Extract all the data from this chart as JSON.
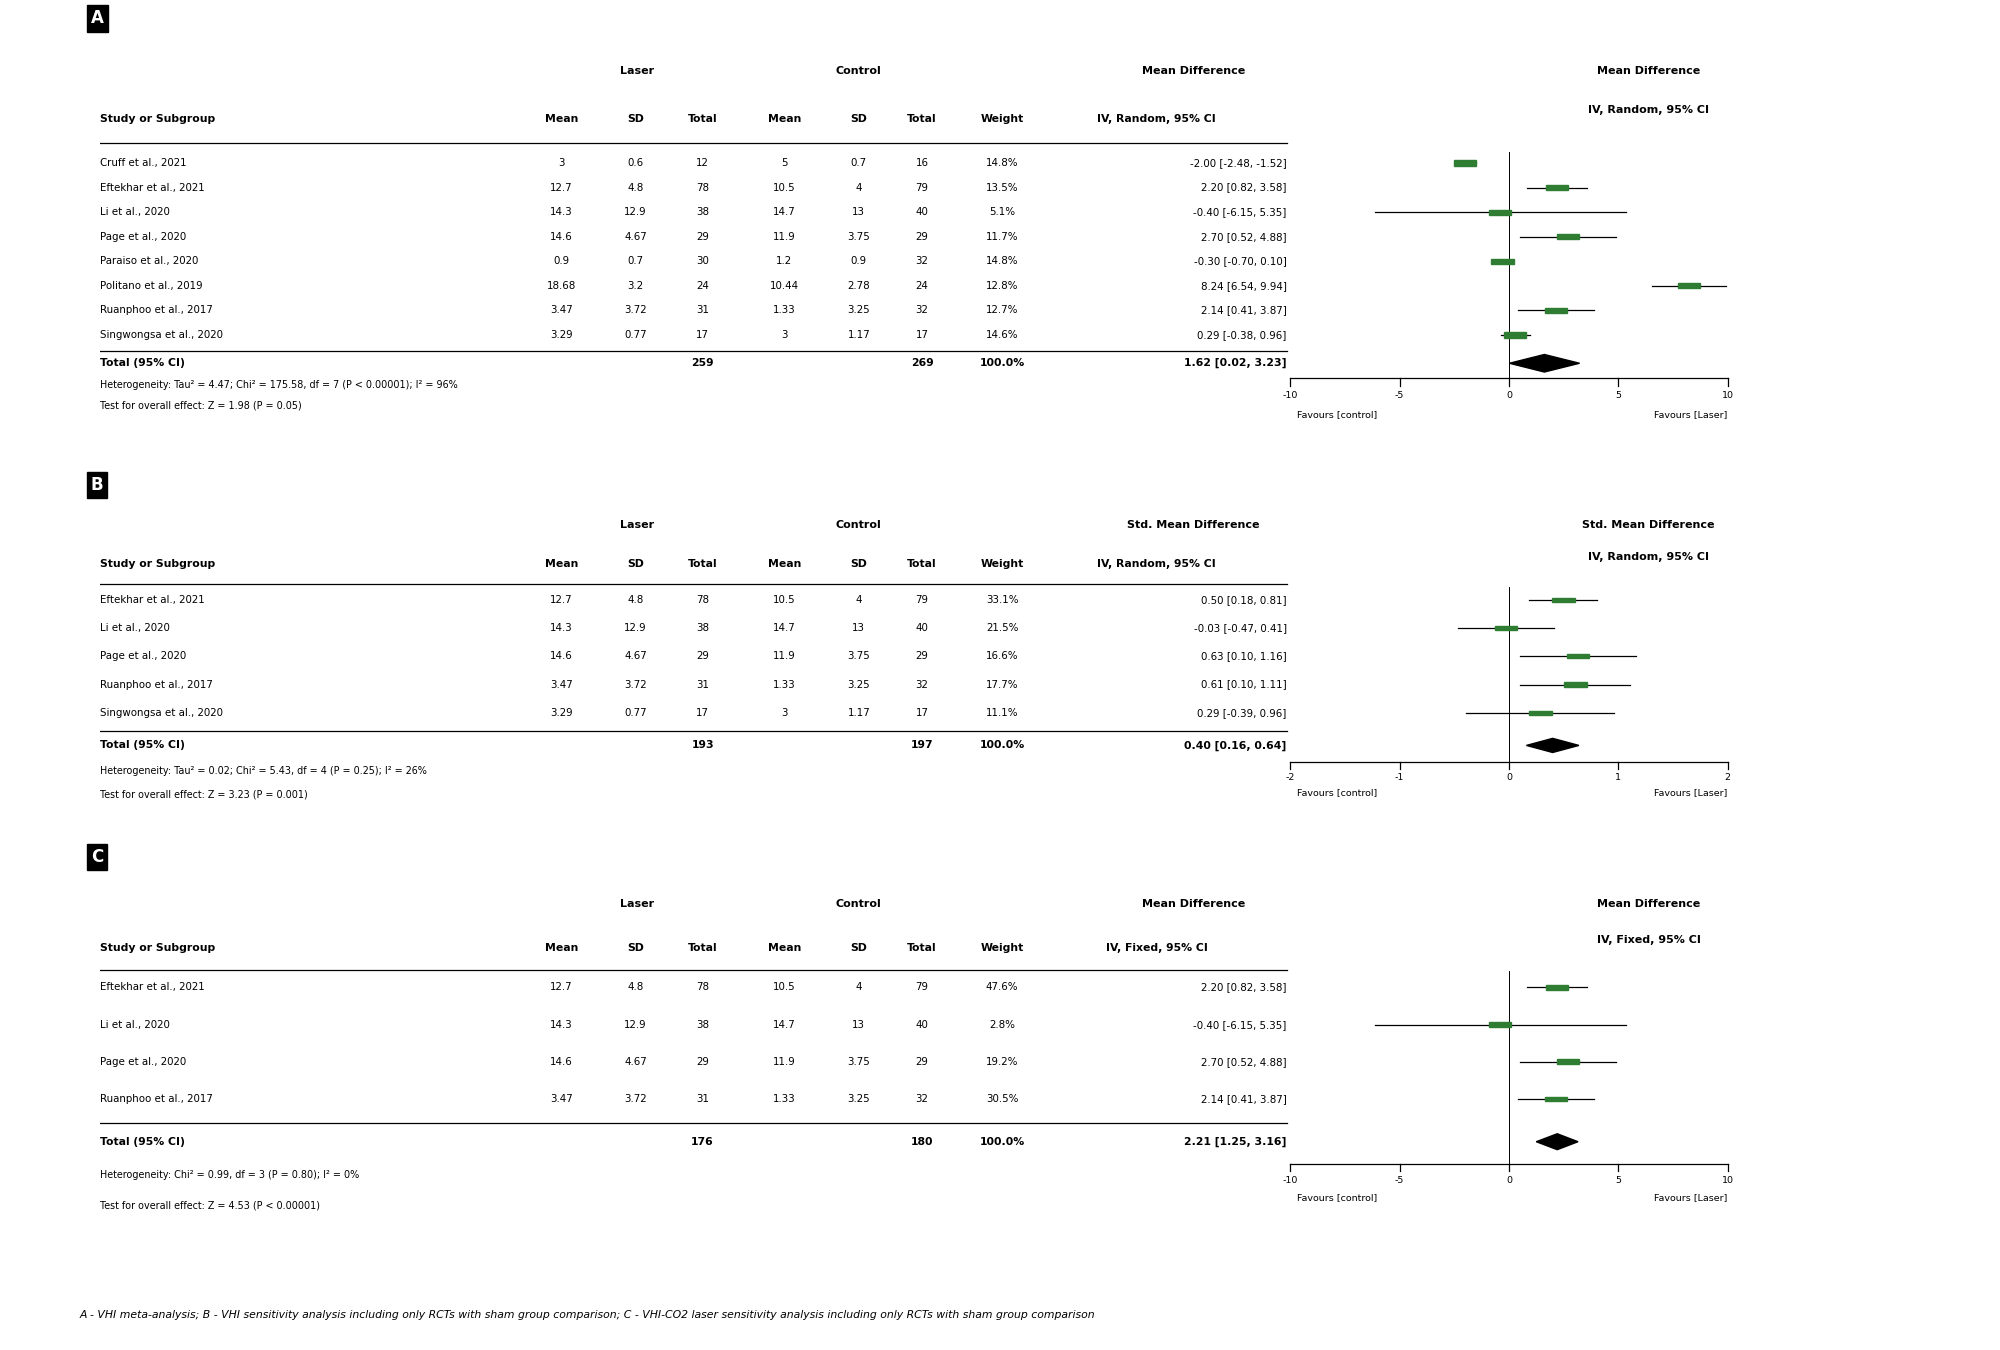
{
  "panel_A": {
    "label": "A",
    "group_header_laser": "Laser",
    "group_header_control": "Control",
    "group_header_stat": "Mean Difference",
    "col_stat": "IV, Random, 95% CI",
    "title_right_line1": "Mean Difference",
    "title_right_line2": "IV, Random, 95% CI",
    "studies": [
      {
        "name": "Cruff et al., 2021",
        "lmean": "3",
        "lsd": "0.6",
        "ln": "12",
        "cmean": "5",
        "csd": "0.7",
        "cn": "16",
        "weight": "14.8%",
        "ci_str": "-2.00 [-2.48, -1.52]",
        "md": -2.0,
        "lo": -2.48,
        "hi": -1.52
      },
      {
        "name": "Eftekhar et al., 2021",
        "lmean": "12.7",
        "lsd": "4.8",
        "ln": "78",
        "cmean": "10.5",
        "csd": "4",
        "cn": "79",
        "weight": "13.5%",
        "ci_str": "2.20 [0.82, 3.58]",
        "md": 2.2,
        "lo": 0.82,
        "hi": 3.58
      },
      {
        "name": "Li et al., 2020",
        "lmean": "14.3",
        "lsd": "12.9",
        "ln": "38",
        "cmean": "14.7",
        "csd": "13",
        "cn": "40",
        "weight": "5.1%",
        "ci_str": "-0.40 [-6.15, 5.35]",
        "md": -0.4,
        "lo": -6.15,
        "hi": 5.35
      },
      {
        "name": "Page et al., 2020",
        "lmean": "14.6",
        "lsd": "4.67",
        "ln": "29",
        "cmean": "11.9",
        "csd": "3.75",
        "cn": "29",
        "weight": "11.7%",
        "ci_str": "2.70 [0.52, 4.88]",
        "md": 2.7,
        "lo": 0.52,
        "hi": 4.88
      },
      {
        "name": "Paraiso et al., 2020",
        "lmean": "0.9",
        "lsd": "0.7",
        "ln": "30",
        "cmean": "1.2",
        "csd": "0.9",
        "cn": "32",
        "weight": "14.8%",
        "ci_str": "-0.30 [-0.70, 0.10]",
        "md": -0.3,
        "lo": -0.7,
        "hi": 0.1
      },
      {
        "name": "Politano et al., 2019",
        "lmean": "18.68",
        "lsd": "3.2",
        "ln": "24",
        "cmean": "10.44",
        "csd": "2.78",
        "cn": "24",
        "weight": "12.8%",
        "ci_str": "8.24 [6.54, 9.94]",
        "md": 8.24,
        "lo": 6.54,
        "hi": 9.94
      },
      {
        "name": "Ruanphoo et al., 2017",
        "lmean": "3.47",
        "lsd": "3.72",
        "ln": "31",
        "cmean": "1.33",
        "csd": "3.25",
        "cn": "32",
        "weight": "12.7%",
        "ci_str": "2.14 [0.41, 3.87]",
        "md": 2.14,
        "lo": 0.41,
        "hi": 3.87
      },
      {
        "name": "Singwongsa et al., 2020",
        "lmean": "3.29",
        "lsd": "0.77",
        "ln": "17",
        "cmean": "3",
        "csd": "1.17",
        "cn": "17",
        "weight": "14.6%",
        "ci_str": "0.29 [-0.38, 0.96]",
        "md": 0.29,
        "lo": -0.38,
        "hi": 0.96
      }
    ],
    "total_laser": "259",
    "total_control": "269",
    "total_weight": "100.0%",
    "total_ci_str": "1.62 [0.02, 3.23]",
    "total_md": 1.62,
    "total_lo": 0.02,
    "total_hi": 3.23,
    "het_str": "Heterogeneity: Tau² = 4.47; Chi² = 175.58, df = 7 (P < 0.00001); I² = 96%",
    "test_str": "Test for overall effect: Z = 1.98 (P = 0.05)",
    "xmin": -10,
    "xmax": 10,
    "xticks": [
      -10,
      -5,
      0,
      5,
      10
    ],
    "xlabel_left": "Favours [control]",
    "xlabel_right": "Favours [Laser]"
  },
  "panel_B": {
    "label": "B",
    "group_header_laser": "Laser",
    "group_header_control": "Control",
    "group_header_stat": "Std. Mean Difference",
    "col_stat": "IV, Random, 95% CI",
    "title_right_line1": "Std. Mean Difference",
    "title_right_line2": "IV, Random, 95% CI",
    "studies": [
      {
        "name": "Eftekhar et al., 2021",
        "lmean": "12.7",
        "lsd": "4.8",
        "ln": "78",
        "cmean": "10.5",
        "csd": "4",
        "cn": "79",
        "weight": "33.1%",
        "ci_str": "0.50 [0.18, 0.81]",
        "md": 0.5,
        "lo": 0.18,
        "hi": 0.81
      },
      {
        "name": "Li et al., 2020",
        "lmean": "14.3",
        "lsd": "12.9",
        "ln": "38",
        "cmean": "14.7",
        "csd": "13",
        "cn": "40",
        "weight": "21.5%",
        "ci_str": "-0.03 [-0.47, 0.41]",
        "md": -0.03,
        "lo": -0.47,
        "hi": 0.41
      },
      {
        "name": "Page et al., 2020",
        "lmean": "14.6",
        "lsd": "4.67",
        "ln": "29",
        "cmean": "11.9",
        "csd": "3.75",
        "cn": "29",
        "weight": "16.6%",
        "ci_str": "0.63 [0.10, 1.16]",
        "md": 0.63,
        "lo": 0.1,
        "hi": 1.16
      },
      {
        "name": "Ruanphoo et al., 2017",
        "lmean": "3.47",
        "lsd": "3.72",
        "ln": "31",
        "cmean": "1.33",
        "csd": "3.25",
        "cn": "32",
        "weight": "17.7%",
        "ci_str": "0.61 [0.10, 1.11]",
        "md": 0.61,
        "lo": 0.1,
        "hi": 1.11
      },
      {
        "name": "Singwongsa et al., 2020",
        "lmean": "3.29",
        "lsd": "0.77",
        "ln": "17",
        "cmean": "3",
        "csd": "1.17",
        "cn": "17",
        "weight": "11.1%",
        "ci_str": "0.29 [-0.39, 0.96]",
        "md": 0.29,
        "lo": -0.39,
        "hi": 0.96
      }
    ],
    "total_laser": "193",
    "total_control": "197",
    "total_weight": "100.0%",
    "total_ci_str": "0.40 [0.16, 0.64]",
    "total_md": 0.4,
    "total_lo": 0.16,
    "total_hi": 0.64,
    "het_str": "Heterogeneity: Tau² = 0.02; Chi² = 5.43, df = 4 (P = 0.25); I² = 26%",
    "test_str": "Test for overall effect: Z = 3.23 (P = 0.001)",
    "xmin": -2,
    "xmax": 2,
    "xticks": [
      -2,
      -1,
      0,
      1,
      2
    ],
    "xlabel_left": "Favours [control]",
    "xlabel_right": "Favours [Laser]"
  },
  "panel_C": {
    "label": "C",
    "group_header_laser": "Laser",
    "group_header_control": "Control",
    "group_header_stat": "Mean Difference",
    "col_stat": "IV, Fixed, 95% CI",
    "title_right_line1": "Mean Difference",
    "title_right_line2": "IV, Fixed, 95% CI",
    "studies": [
      {
        "name": "Eftekhar et al., 2021",
        "lmean": "12.7",
        "lsd": "4.8",
        "ln": "78",
        "cmean": "10.5",
        "csd": "4",
        "cn": "79",
        "weight": "47.6%",
        "ci_str": "2.20 [0.82, 3.58]",
        "md": 2.2,
        "lo": 0.82,
        "hi": 3.58
      },
      {
        "name": "Li et al., 2020",
        "lmean": "14.3",
        "lsd": "12.9",
        "ln": "38",
        "cmean": "14.7",
        "csd": "13",
        "cn": "40",
        "weight": "2.8%",
        "ci_str": "-0.40 [-6.15, 5.35]",
        "md": -0.4,
        "lo": -6.15,
        "hi": 5.35
      },
      {
        "name": "Page et al., 2020",
        "lmean": "14.6",
        "lsd": "4.67",
        "ln": "29",
        "cmean": "11.9",
        "csd": "3.75",
        "cn": "29",
        "weight": "19.2%",
        "ci_str": "2.70 [0.52, 4.88]",
        "md": 2.7,
        "lo": 0.52,
        "hi": 4.88
      },
      {
        "name": "Ruanphoo et al., 2017",
        "lmean": "3.47",
        "lsd": "3.72",
        "ln": "31",
        "cmean": "1.33",
        "csd": "3.25",
        "cn": "32",
        "weight": "30.5%",
        "ci_str": "2.14 [0.41, 3.87]",
        "md": 2.14,
        "lo": 0.41,
        "hi": 3.87
      }
    ],
    "total_laser": "176",
    "total_control": "180",
    "total_weight": "100.0%",
    "total_ci_str": "2.21 [1.25, 3.16]",
    "total_md": 2.21,
    "total_lo": 1.25,
    "total_hi": 3.16,
    "het_str": "Heterogeneity: Chi² = 0.99, df = 3 (P = 0.80); I² = 0%",
    "test_str": "Test for overall effect: Z = 4.53 (P < 0.00001)",
    "xmin": -10,
    "xmax": 10,
    "xticks": [
      -10,
      -5,
      0,
      5,
      10
    ],
    "xlabel_left": "Favours [control]",
    "xlabel_right": "Favours [Laser]"
  },
  "caption": "A - VHI meta-analysis; B - VHI sensitivity analysis including only RCTs with sham group comparison; C - VHI-CO2 laser sensitivity analysis including only RCTs with sham group comparison"
}
